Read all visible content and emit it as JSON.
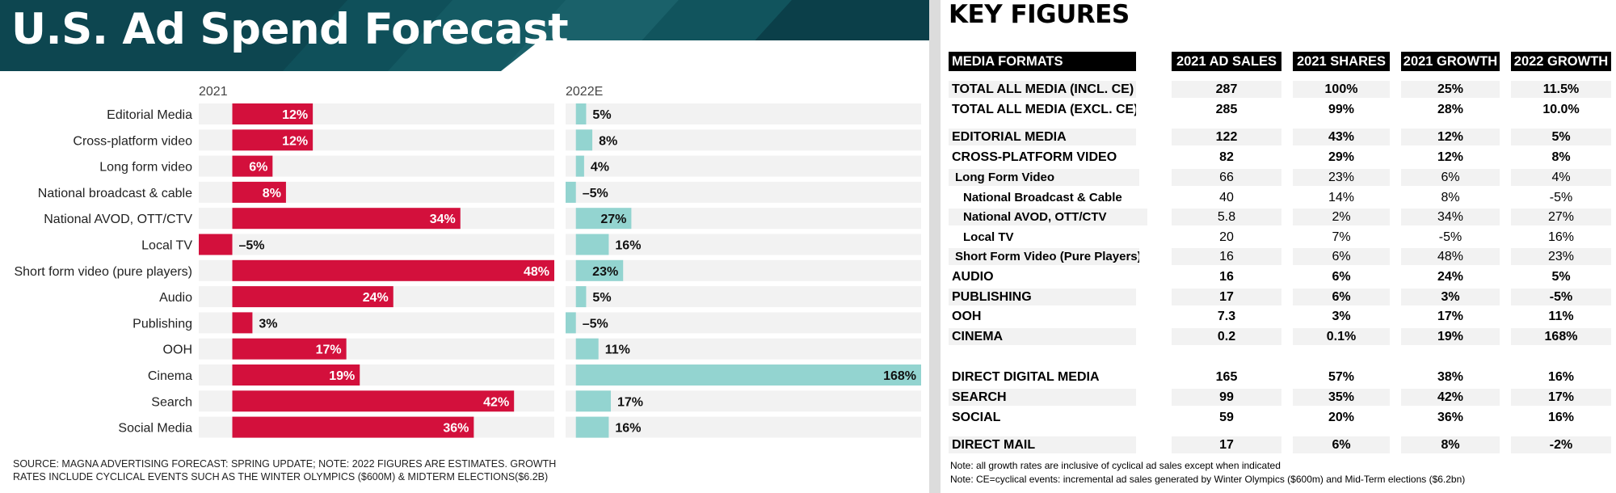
{
  "chart_data": {
    "type": "bar",
    "title": "U.S. Ad Spend Forecast",
    "categories": [
      "Editorial Media",
      "Cross-platform video",
      "Long form video",
      "National broadcast & cable",
      "National AVOD, OTT/CTV",
      "Local TV",
      "Short form video (pure players)",
      "Audio",
      "Publishing",
      "OOH",
      "Cinema",
      "Search",
      "Social Media"
    ],
    "series": [
      {
        "name": "2021",
        "values": [
          12,
          12,
          6,
          8,
          34,
          -5,
          48,
          24,
          3,
          17,
          19,
          42,
          36
        ],
        "labels": [
          "12%",
          "12%",
          "6%",
          "8%",
          "34%",
          "–5%",
          "48%",
          "24%",
          "3%",
          "17%",
          "19%",
          "42%",
          "36%"
        ],
        "color": "#d3103c",
        "xlim": [
          -5,
          48
        ]
      },
      {
        "name": "2022E",
        "values": [
          5,
          8,
          4,
          -5,
          27,
          16,
          23,
          5,
          -5,
          11,
          168,
          17,
          16
        ],
        "labels": [
          "5%",
          "8%",
          "4%",
          "–5%",
          "27%",
          "16%",
          "23%",
          "5%",
          "–5%",
          "11%",
          "168%",
          "17%",
          "16%"
        ],
        "color": "#93d4d0",
        "xlim": [
          -5,
          168
        ]
      }
    ],
    "source_note": "SOURCE: MAGNA ADVERTISING FORECAST: SPRING UPDATE; NOTE: 2022 FIGURES ARE ESTIMATES. GROWTH RATES INCLUDE CYCLICAL EVENTS SUCH AS THE WINTER OLYMPICS ($600M) & MIDTERM ELECTIONS($6.2B)"
  },
  "key_figures": {
    "title": "KEY FIGURES",
    "headers": [
      "MEDIA FORMATS",
      "2021 AD SALES",
      "2021 SHARES",
      "2021 GROWTH",
      "2022 GROWTH"
    ],
    "rows": [
      {
        "label": "TOTAL ALL MEDIA (INCL. CE)",
        "level": 0,
        "values": [
          "287",
          "100%",
          "25%",
          "11.5%"
        ]
      },
      {
        "label": "TOTAL ALL MEDIA (EXCL. CE)",
        "level": 0,
        "values": [
          "285",
          "99%",
          "28%",
          "10.0%"
        ]
      },
      {
        "label": "EDITORIAL MEDIA",
        "level": 0,
        "values": [
          "122",
          "43%",
          "12%",
          "5%"
        ]
      },
      {
        "label": "CROSS-PLATFORM VIDEO",
        "level": 0,
        "values": [
          "82",
          "29%",
          "12%",
          "8%"
        ]
      },
      {
        "label": "Long Form Video",
        "level": 1,
        "values": [
          "66",
          "23%",
          "6%",
          "4%"
        ]
      },
      {
        "label": "National Broadcast & Cable",
        "level": 2,
        "values": [
          "40",
          "14%",
          "8%",
          "-5%"
        ]
      },
      {
        "label": "National AVOD, OTT/CTV",
        "level": 2,
        "values": [
          "5.8",
          "2%",
          "34%",
          "27%"
        ]
      },
      {
        "label": "Local TV",
        "level": 2,
        "values": [
          "20",
          "7%",
          "-5%",
          "16%"
        ]
      },
      {
        "label": "Short Form Video (Pure Players)",
        "level": 1,
        "values": [
          "16",
          "6%",
          "48%",
          "23%"
        ]
      },
      {
        "label": "AUDIO",
        "level": 0,
        "values": [
          "16",
          "6%",
          "24%",
          "5%"
        ]
      },
      {
        "label": "PUBLISHING",
        "level": 0,
        "values": [
          "17",
          "6%",
          "3%",
          "-5%"
        ]
      },
      {
        "label": "OOH",
        "level": 0,
        "values": [
          "7.3",
          "3%",
          "17%",
          "11%"
        ]
      },
      {
        "label": "CINEMA",
        "level": 0,
        "values": [
          "0.2",
          "0.1%",
          "19%",
          "168%"
        ]
      },
      {
        "label": "DIRECT DIGITAL MEDIA",
        "level": 0,
        "values": [
          "165",
          "57%",
          "38%",
          "16%"
        ]
      },
      {
        "label": "SEARCH",
        "level": 0,
        "values": [
          "99",
          "35%",
          "42%",
          "17%"
        ]
      },
      {
        "label": "SOCIAL",
        "level": 0,
        "values": [
          "59",
          "20%",
          "36%",
          "16%"
        ]
      },
      {
        "label": "DIRECT MAIL",
        "level": 0,
        "values": [
          "17",
          "6%",
          "8%",
          "-2%"
        ]
      }
    ],
    "notes": [
      "Note: all growth rates are inclusive of cyclical ad sales except when indicated",
      "Note: CE=cyclical events: incremental ad sales generated by Winter Olympics ($600m) and Mid-Term elections ($6.2bn)"
    ]
  },
  "colors": {
    "banner": "#0d4650",
    "bar_2021": "#d3103c",
    "bar_2022": "#93d4d0",
    "track": "#f2f2f2"
  }
}
